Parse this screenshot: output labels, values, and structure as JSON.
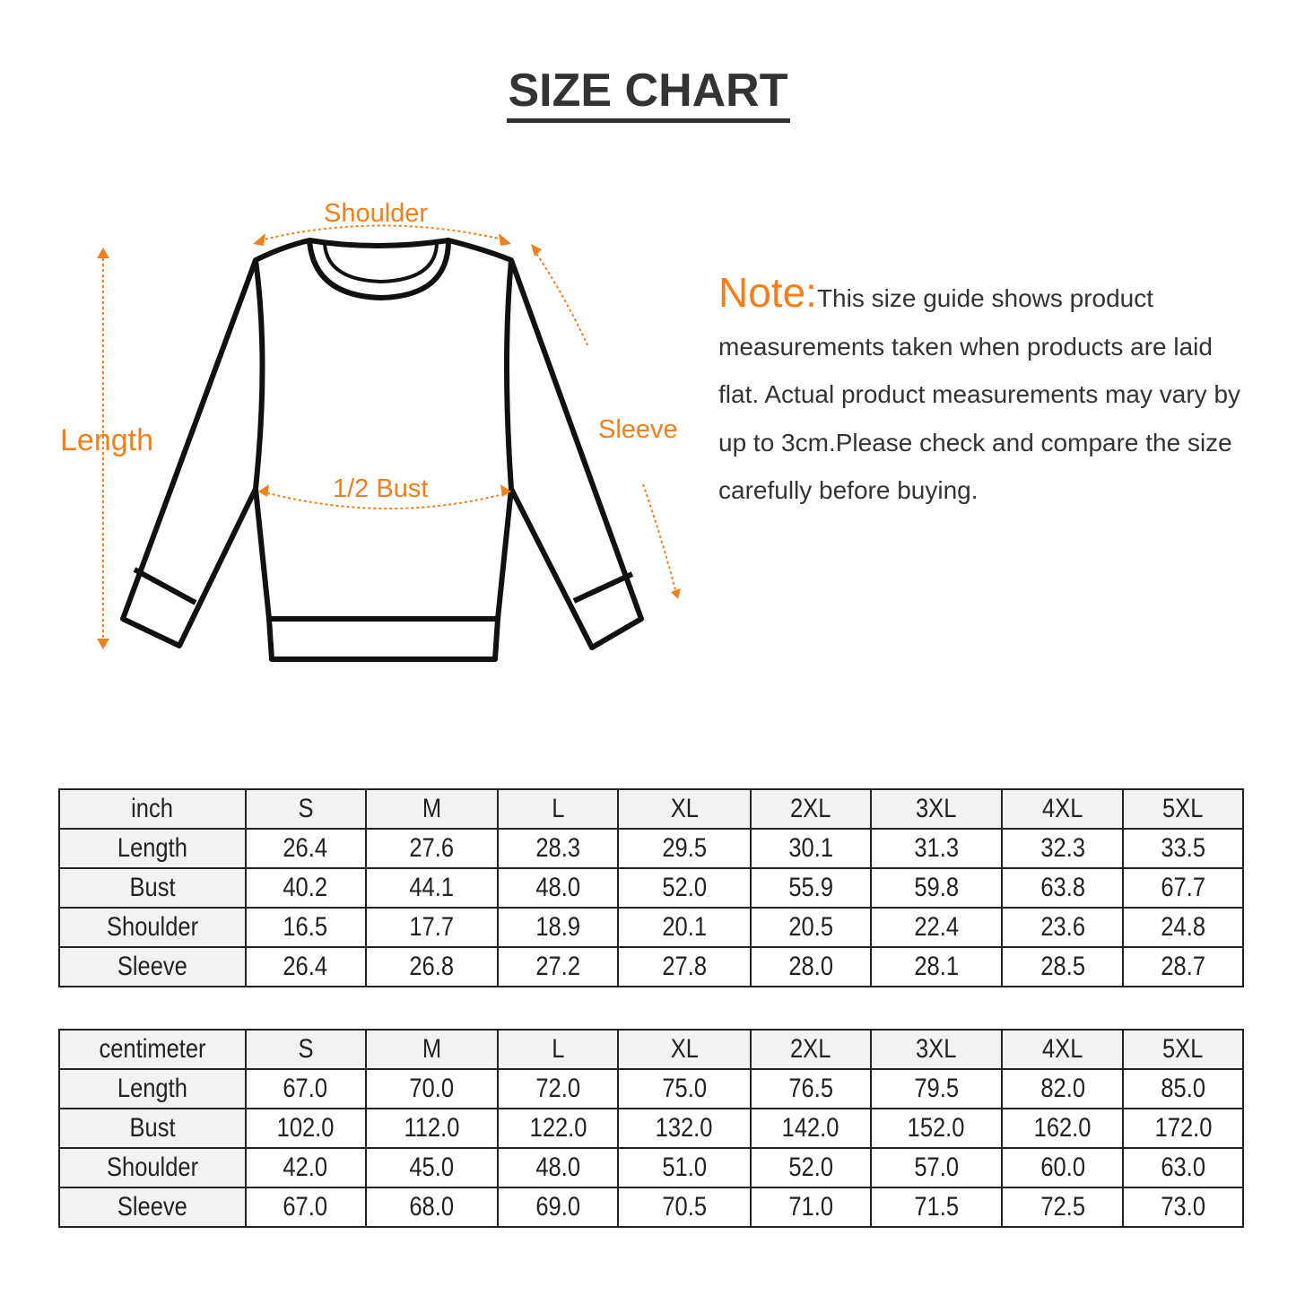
{
  "title": "SIZE CHART",
  "diagram": {
    "labels": {
      "shoulder": "Shoulder",
      "length": "Length",
      "sleeve": "Sleeve",
      "bust": "1/2 Bust"
    },
    "accent_color": "#f07f1c"
  },
  "note": {
    "heading": "Note:",
    "text": "This size guide shows product measurements taken when products are laid flat. Actual product measurements may vary by up to 3cm.Please check and compare the size carefully before buying."
  },
  "tables": [
    {
      "unit": "inch",
      "sizes": [
        "S",
        "M",
        "L",
        "XL",
        "2XL",
        "3XL",
        "4XL",
        "5XL"
      ],
      "rows": [
        {
          "label": "Length",
          "values": [
            "26.4",
            "27.6",
            "28.3",
            "29.5",
            "30.1",
            "31.3",
            "32.3",
            "33.5"
          ]
        },
        {
          "label": "Bust",
          "values": [
            "40.2",
            "44.1",
            "48.0",
            "52.0",
            "55.9",
            "59.8",
            "63.8",
            "67.7"
          ]
        },
        {
          "label": "Shoulder",
          "values": [
            "16.5",
            "17.7",
            "18.9",
            "20.1",
            "20.5",
            "22.4",
            "23.6",
            "24.8"
          ]
        },
        {
          "label": "Sleeve",
          "values": [
            "26.4",
            "26.8",
            "27.2",
            "27.8",
            "28.0",
            "28.1",
            "28.5",
            "28.7"
          ]
        }
      ]
    },
    {
      "unit": "centimeter",
      "sizes": [
        "S",
        "M",
        "L",
        "XL",
        "2XL",
        "3XL",
        "4XL",
        "5XL"
      ],
      "rows": [
        {
          "label": "Length",
          "values": [
            "67.0",
            "70.0",
            "72.0",
            "75.0",
            "76.5",
            "79.5",
            "82.0",
            "85.0"
          ]
        },
        {
          "label": "Bust",
          "values": [
            "102.0",
            "112.0",
            "122.0",
            "132.0",
            "142.0",
            "152.0",
            "162.0",
            "172.0"
          ]
        },
        {
          "label": "Shoulder",
          "values": [
            "42.0",
            "45.0",
            "48.0",
            "51.0",
            "52.0",
            "57.0",
            "60.0",
            "63.0"
          ]
        },
        {
          "label": "Sleeve",
          "values": [
            "67.0",
            "68.0",
            "69.0",
            "70.5",
            "71.0",
            "71.5",
            "72.5",
            "73.0"
          ]
        }
      ]
    }
  ]
}
